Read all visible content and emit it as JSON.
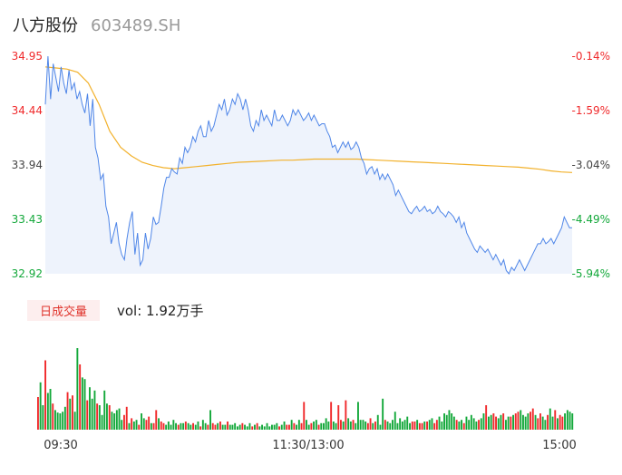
{
  "header": {
    "name": "八方股份",
    "code": "603489.SH"
  },
  "colors": {
    "up": "#f0292b",
    "down": "#13a83a",
    "neutral": "#444444",
    "price_line": "#4f86e8",
    "avg_line": "#f2b12b",
    "area": "#eef3fc"
  },
  "volume_tab": {
    "label": "日成交量",
    "vol_text": "vol: 1.92万手"
  },
  "chart_data": [
    {
      "type": "line",
      "title": "",
      "y_ticks_price": [
        "34.95",
        "34.44",
        "33.94",
        "33.43",
        "32.92"
      ],
      "y_ticks_pct": [
        "-0.14%",
        "-1.59%",
        "-3.04%",
        "-4.49%",
        "-5.94%"
      ],
      "ylim": [
        32.92,
        34.95
      ],
      "x_ticks": [
        "09:30",
        "11:30/13:00",
        "15:00"
      ],
      "series": [
        {
          "name": "",
          "role": "price",
          "values": [
            34.5,
            34.95,
            34.55,
            34.88,
            34.75,
            34.62,
            34.85,
            34.7,
            34.6,
            34.82,
            34.64,
            34.7,
            34.55,
            34.62,
            34.5,
            34.42,
            34.6,
            34.3,
            34.55,
            34.1,
            34.0,
            33.8,
            33.85,
            33.55,
            33.45,
            33.2,
            33.3,
            33.4,
            33.2,
            33.1,
            33.05,
            33.25,
            33.4,
            33.5,
            33.1,
            33.3,
            33.0,
            33.05,
            33.3,
            33.15,
            33.25,
            33.45,
            33.38,
            33.4,
            33.55,
            33.72,
            33.82,
            33.82,
            33.9,
            33.87,
            33.85,
            34.0,
            33.95,
            34.1,
            34.05,
            34.1,
            34.2,
            34.15,
            34.25,
            34.3,
            34.2,
            34.2,
            34.35,
            34.25,
            34.3,
            34.4,
            34.5,
            34.45,
            34.55,
            34.4,
            34.45,
            34.55,
            34.5,
            34.6,
            34.55,
            34.45,
            34.55,
            34.45,
            34.3,
            34.25,
            34.35,
            34.3,
            34.45,
            34.35,
            34.4,
            34.35,
            34.3,
            34.45,
            34.35,
            34.35,
            34.4,
            34.35,
            34.3,
            34.35,
            34.45,
            34.4,
            34.45,
            34.4,
            34.35,
            34.38,
            34.42,
            34.35,
            34.4,
            34.35,
            34.3,
            34.32,
            34.32,
            34.25,
            34.2,
            34.1,
            34.12,
            34.05,
            34.1,
            34.15,
            34.1,
            34.15,
            34.08,
            34.1,
            34.15,
            34.1,
            34.0,
            33.95,
            33.85,
            33.9,
            33.92,
            33.85,
            33.9,
            33.8,
            33.85,
            33.8,
            33.85,
            33.8,
            33.75,
            33.65,
            33.7,
            33.65,
            33.6,
            33.55,
            33.5,
            33.48,
            33.52,
            33.55,
            33.5,
            33.52,
            33.55,
            33.5,
            33.52,
            33.48,
            33.5,
            33.55,
            33.5,
            33.48,
            33.45,
            33.5,
            33.48,
            33.45,
            33.4,
            33.45,
            33.35,
            33.4,
            33.3,
            33.25,
            33.2,
            33.15,
            33.12,
            33.18,
            33.15,
            33.12,
            33.15,
            33.1,
            33.05,
            33.1,
            33.05,
            33.0,
            33.05,
            32.95,
            32.92,
            32.98,
            32.95,
            33.0,
            33.05,
            33.0,
            32.95,
            33.0,
            33.05,
            33.1,
            33.15,
            33.2,
            33.2,
            33.25,
            33.2,
            33.22,
            33.25,
            33.2,
            33.25,
            33.3,
            33.35,
            33.45,
            33.4,
            33.35,
            33.35
          ]
        },
        {
          "name": "",
          "role": "average",
          "values": [
            34.85,
            34.84,
            34.83,
            34.8,
            34.7,
            34.5,
            34.25,
            34.1,
            34.02,
            33.96,
            33.93,
            33.91,
            33.9,
            33.91,
            33.92,
            33.93,
            33.94,
            33.95,
            33.96,
            33.965,
            33.97,
            33.975,
            33.98,
            33.98,
            33.985,
            33.99,
            33.99,
            33.99,
            33.99,
            33.99,
            33.985,
            33.98,
            33.975,
            33.97,
            33.965,
            33.96,
            33.955,
            33.95,
            33.945,
            33.94,
            33.935,
            33.93,
            33.925,
            33.92,
            33.915,
            33.905,
            33.895,
            33.88,
            33.87,
            33.865
          ]
        }
      ]
    },
    {
      "type": "bar",
      "title": "",
      "ylim": [
        0,
        100
      ],
      "series": [
        {
          "name": "",
          "values": [
            40,
            58,
            30,
            85,
            45,
            50,
            32,
            24,
            21,
            20,
            22,
            28,
            46,
            38,
            42,
            22,
            100,
            80,
            64,
            62,
            36,
            52,
            38,
            48,
            32,
            30,
            18,
            48,
            32,
            30,
            22,
            20,
            24,
            26,
            12,
            18,
            28,
            8,
            14,
            10,
            12,
            6,
            20,
            14,
            12,
            16,
            8,
            8,
            24,
            14,
            10,
            8,
            6,
            10,
            6,
            12,
            8,
            6,
            8,
            8,
            10,
            8,
            6,
            8,
            6,
            10,
            4,
            12,
            8,
            6,
            24,
            8,
            6,
            8,
            10,
            6,
            6,
            10,
            6,
            6,
            8,
            4,
            6,
            8,
            6,
            4,
            8,
            4,
            6,
            8,
            4,
            6,
            4,
            8,
            4,
            6,
            6,
            8,
            4,
            6,
            10,
            6,
            6,
            12,
            8,
            6,
            12,
            8,
            34,
            12,
            6,
            8,
            10,
            12,
            6,
            8,
            8,
            14,
            10,
            34,
            10,
            8,
            30,
            12,
            10,
            36,
            14,
            10,
            12,
            8,
            34,
            12,
            12,
            10,
            8,
            14,
            8,
            10,
            18,
            6,
            38,
            12,
            10,
            8,
            12,
            22,
            8,
            14,
            10,
            12,
            16,
            8,
            10,
            10,
            12,
            8,
            8,
            10,
            10,
            12,
            14,
            8,
            12,
            16,
            10,
            20,
            18,
            24,
            20,
            16,
            12,
            10,
            12,
            8,
            16,
            12,
            18,
            14,
            10,
            12,
            14,
            20,
            30,
            16,
            18,
            20,
            16,
            14,
            18,
            20,
            12,
            16,
            16,
            18,
            20,
            22,
            24,
            18,
            16,
            20,
            22,
            26,
            18,
            14,
            20,
            16,
            12,
            18,
            26,
            16,
            24,
            14,
            18,
            16,
            20,
            24,
            22,
            20
          ]
        }
      ]
    }
  ]
}
